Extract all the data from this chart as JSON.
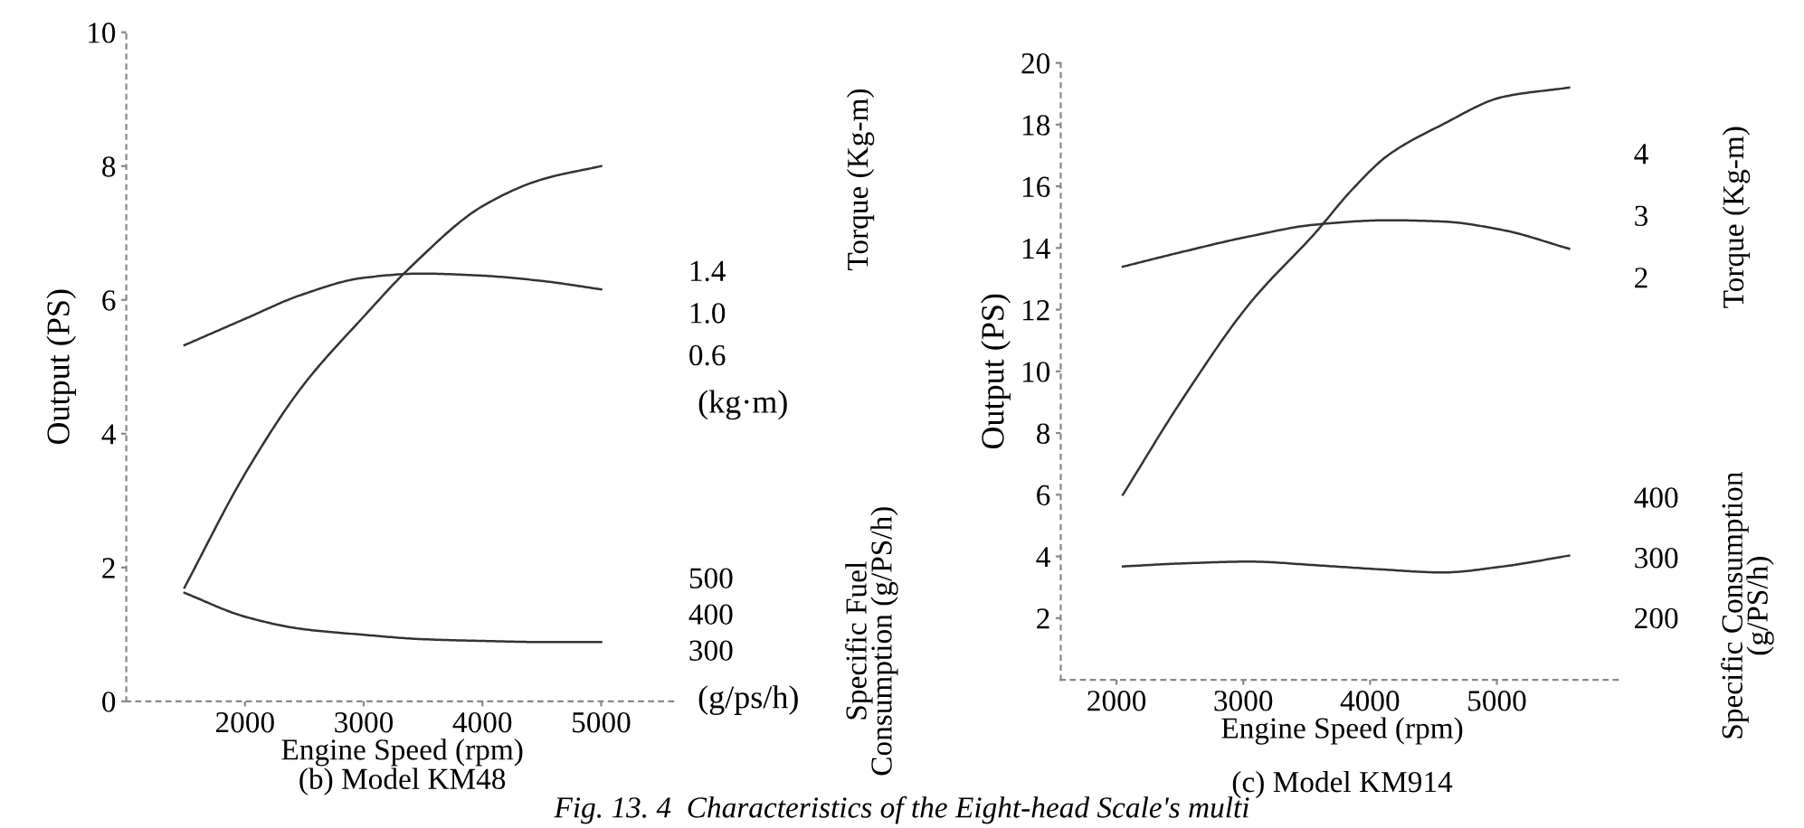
{
  "chart_data": [
    {
      "type": "line",
      "title": "(b) Model KM48",
      "xlabel": "Engine Speed (rpm)",
      "ylabel": "Output (PS)",
      "y2label": "Torque (Kg-m)",
      "y3label": "Specific Fuel\nConsumption (g/PS/h)",
      "xlim": [
        1000,
        5650
      ],
      "xticks": [
        2000,
        3000,
        4000,
        5000
      ],
      "ylim": [
        0,
        10
      ],
      "yticks": [
        0,
        2,
        4,
        6,
        8,
        10
      ],
      "y2lim": [
        -2.69,
        3.66
      ],
      "y2ticks": [
        0.6,
        {
          "value": 1.0,
          "label": "1.0"
        },
        1.4
      ],
      "y3lim": [
        158,
        2008
      ],
      "y3ticks": [
        300,
        400,
        500
      ],
      "series": [
        {
          "color": "#333333",
          "x": [
            1490,
            2000,
            2480,
            3000,
            3400,
            4000,
            4500,
            5000
          ],
          "values": [
            1.7,
            3.4,
            4.7,
            5.75,
            6.5,
            7.4,
            7.8,
            8.0
          ]
        },
        {
          "color": "#333333",
          "axis": "y2",
          "x": [
            1490,
            2000,
            2480,
            3000,
            3480,
            4000,
            4500,
            5000
          ],
          "values": [
            0.69,
            0.94,
            1.17,
            1.33,
            1.37,
            1.35,
            1.3,
            1.22
          ]
        },
        {
          "color": "#333333",
          "axis": "y3",
          "x": [
            1490,
            2000,
            2480,
            3000,
            3480,
            4000,
            4500,
            5000
          ],
          "values": [
            458,
            392,
            358,
            342,
            330,
            325,
            322,
            322
          ]
        }
      ],
      "annotations": [
        "(kg·m)",
        "(g/ps/h)",
        "Fig. 13. 4  Characteristics of the Eight-head Scale's multi"
      ]
    },
    {
      "type": "line",
      "title": "(c) Model KM914",
      "xlabel": "Engine Speed (rpm)",
      "ylabel": "Output (PS)",
      "y2label": "Torque (Kg-m)",
      "y3label": "Specific Consumption\n(g/PS/h)",
      "xlim": [
        1560,
        6000
      ],
      "xticks": [
        2000,
        3000,
        4000,
        5000
      ],
      "ylim": [
        0,
        20
      ],
      "yticks": [
        2,
        4,
        6,
        8,
        10,
        12,
        14,
        16,
        18,
        20
      ],
      "y2lim": [
        -4.5,
        5.46
      ],
      "y2ticks": [
        2,
        3,
        4
      ],
      "y3lim": [
        97,
        1120
      ],
      "y3ticks": [
        200,
        300,
        400
      ],
      "series": [
        {
          "color": "#333333",
          "x": [
            2050,
            2520,
            3050,
            3570,
            3860,
            4140,
            4570,
            5050,
            5570
          ],
          "values": [
            6.0,
            9.1,
            12.2,
            14.5,
            15.9,
            17.0,
            18.0,
            18.9,
            19.2
          ]
        },
        {
          "color": "#333333",
          "axis": "y2",
          "x": [
            2050,
            2520,
            3050,
            3570,
            4140,
            4570,
            5050,
            5570
          ],
          "values": [
            2.17,
            2.41,
            2.66,
            2.85,
            2.92,
            2.9,
            2.76,
            2.46
          ]
        },
        {
          "color": "#333333",
          "axis": "y3",
          "x": [
            2050,
            2520,
            3050,
            3570,
            4090,
            4570,
            5050,
            5570
          ],
          "values": [
            285,
            290,
            293,
            287,
            280,
            275,
            285,
            303
          ]
        }
      ]
    }
  ]
}
